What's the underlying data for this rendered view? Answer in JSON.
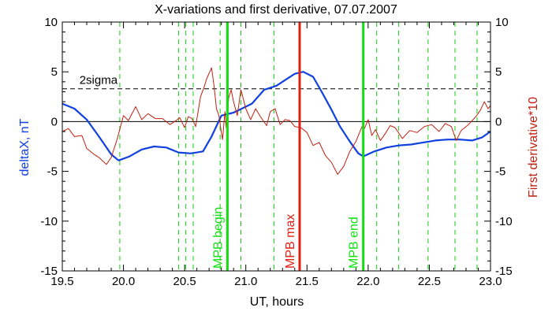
{
  "colors": {
    "background": "#ffffff",
    "axis": "#000000",
    "deltaX": "#1040e0",
    "derivative": "#c02010",
    "mpb_edge": "#10e010",
    "mpb_max": "#e02010",
    "marker_dashed": "#10cc10",
    "sigma": "#000000"
  },
  "chart_data": {
    "type": "line",
    "title": "X-variations and first derivative, 07.07.2007",
    "xlabel": "UT, hours",
    "ylabel_left": "deltaX, nT",
    "ylabel_right": "First derivative*10",
    "xlim": [
      19.5,
      23.0
    ],
    "ylim": [
      -15,
      10
    ],
    "x_ticks": [
      "19.5",
      "20.0",
      "20.5",
      "21.0",
      "21.5",
      "22.0",
      "22.5",
      "23.0"
    ],
    "y_ticks_left": [
      "10",
      "5",
      "0",
      "-5",
      "-10",
      "-15"
    ],
    "y_ticks_right": [
      "10",
      "5",
      "0",
      "-5",
      "-10",
      "-15"
    ],
    "grid": false,
    "sigma_label": "2sigma",
    "sigma_value": 3.3,
    "zero_line": 0,
    "dashed_markers_x": [
      19.97,
      20.45,
      20.51,
      20.57,
      20.79,
      20.96,
      21.23,
      22.07,
      22.25,
      22.49,
      22.71,
      22.89
    ],
    "vertical_markers": [
      {
        "x": 20.85,
        "label": "MPB begin",
        "color": "#10e010"
      },
      {
        "x": 21.44,
        "label": "MPB max",
        "color": "#e02010"
      },
      {
        "x": 21.96,
        "label": "MPB end",
        "color": "#10e010"
      }
    ],
    "series": [
      {
        "name": "deltaX, nT",
        "color": "#1040e0",
        "points": [
          [
            19.5,
            1.8
          ],
          [
            19.6,
            1.3
          ],
          [
            19.7,
            0.2
          ],
          [
            19.8,
            -1.5
          ],
          [
            19.9,
            -3.3
          ],
          [
            19.96,
            -3.9
          ],
          [
            20.05,
            -3.5
          ],
          [
            20.15,
            -2.8
          ],
          [
            20.25,
            -2.5
          ],
          [
            20.35,
            -2.6
          ],
          [
            20.45,
            -3.1
          ],
          [
            20.55,
            -3.2
          ],
          [
            20.65,
            -3.0
          ],
          [
            20.72,
            -1.5
          ],
          [
            20.8,
            0.6
          ],
          [
            20.9,
            0.9
          ],
          [
            20.95,
            1.2
          ],
          [
            21.05,
            1.8
          ],
          [
            21.15,
            3.2
          ],
          [
            21.25,
            3.6
          ],
          [
            21.3,
            4.0
          ],
          [
            21.4,
            4.8
          ],
          [
            21.47,
            5.0
          ],
          [
            21.55,
            4.5
          ],
          [
            21.62,
            3.0
          ],
          [
            21.7,
            1.2
          ],
          [
            21.77,
            -0.5
          ],
          [
            21.85,
            -2.0
          ],
          [
            21.92,
            -3.2
          ],
          [
            21.96,
            -3.5
          ],
          [
            22.05,
            -3.0
          ],
          [
            22.15,
            -2.6
          ],
          [
            22.25,
            -2.4
          ],
          [
            22.35,
            -2.3
          ],
          [
            22.45,
            -2.1
          ],
          [
            22.55,
            -1.9
          ],
          [
            22.65,
            -1.8
          ],
          [
            22.75,
            -1.8
          ],
          [
            22.85,
            -1.9
          ],
          [
            22.93,
            -1.6
          ],
          [
            23.0,
            -1.0
          ]
        ]
      },
      {
        "name": "First derivative*10",
        "color": "#c02010",
        "points": [
          [
            19.5,
            -1.0
          ],
          [
            19.55,
            -0.7
          ],
          [
            19.6,
            -1.5
          ],
          [
            19.66,
            -1.4
          ],
          [
            19.7,
            -2.7
          ],
          [
            19.76,
            -3.3
          ],
          [
            19.8,
            -3.6
          ],
          [
            19.86,
            -4.3
          ],
          [
            19.9,
            -3.6
          ],
          [
            19.95,
            -1.7
          ],
          [
            20.0,
            0.6
          ],
          [
            20.04,
            0.1
          ],
          [
            20.1,
            1.5
          ],
          [
            20.15,
            0.2
          ],
          [
            20.2,
            0.8
          ],
          [
            20.26,
            0.3
          ],
          [
            20.32,
            0.3
          ],
          [
            20.38,
            -0.3
          ],
          [
            20.43,
            0.1
          ],
          [
            20.46,
            0.4
          ],
          [
            20.5,
            -0.6
          ],
          [
            20.53,
            0.5
          ],
          [
            20.56,
            0.3
          ],
          [
            20.59,
            -0.5
          ],
          [
            20.63,
            2.5
          ],
          [
            20.66,
            3.5
          ],
          [
            20.68,
            4.3
          ],
          [
            20.72,
            5.4
          ],
          [
            20.74,
            3.6
          ],
          [
            20.76,
            1.3
          ],
          [
            20.78,
            0.6
          ],
          [
            20.8,
            -1.1
          ],
          [
            20.81,
            -1.8
          ],
          [
            20.83,
            1.0
          ],
          [
            20.84,
            -0.6
          ],
          [
            20.86,
            2.4
          ],
          [
            20.88,
            3.2
          ],
          [
            20.9,
            2.0
          ],
          [
            20.93,
            0.6
          ],
          [
            20.96,
            3.2
          ],
          [
            21.0,
            1.3
          ],
          [
            21.04,
            0.2
          ],
          [
            21.08,
            1.3
          ],
          [
            21.12,
            0.5
          ],
          [
            21.17,
            -0.4
          ],
          [
            21.2,
            1.0
          ],
          [
            21.24,
            1.3
          ],
          [
            21.28,
            -0.3
          ],
          [
            21.32,
            0.2
          ],
          [
            21.36,
            0.1
          ],
          [
            21.4,
            -0.5
          ],
          [
            21.45,
            -0.6
          ],
          [
            21.5,
            -1.1
          ],
          [
            21.55,
            -2.4
          ],
          [
            21.6,
            -2.1
          ],
          [
            21.65,
            -3.4
          ],
          [
            21.7,
            -4.1
          ],
          [
            21.75,
            -5.3
          ],
          [
            21.8,
            -4.5
          ],
          [
            21.85,
            -3.0
          ],
          [
            21.9,
            -2.0
          ],
          [
            21.95,
            -0.5
          ],
          [
            21.97,
            -0.7
          ],
          [
            22.0,
            0.2
          ],
          [
            22.03,
            -1.4
          ],
          [
            22.06,
            -0.8
          ],
          [
            22.1,
            -1.9
          ],
          [
            22.14,
            -1.2
          ],
          [
            22.18,
            -0.4
          ],
          [
            22.22,
            -0.6
          ],
          [
            22.28,
            -1.7
          ],
          [
            22.34,
            -0.9
          ],
          [
            22.4,
            -1.1
          ],
          [
            22.46,
            -0.5
          ],
          [
            22.52,
            -0.3
          ],
          [
            22.58,
            -1.0
          ],
          [
            22.63,
            -0.2
          ],
          [
            22.68,
            -0.5
          ],
          [
            22.72,
            -1.9
          ],
          [
            22.76,
            -0.9
          ],
          [
            22.82,
            -0.3
          ],
          [
            22.88,
            0.5
          ],
          [
            22.92,
            1.2
          ],
          [
            22.95,
            2.0
          ],
          [
            22.98,
            1.3
          ],
          [
            23.0,
            1.6
          ]
        ]
      }
    ]
  }
}
